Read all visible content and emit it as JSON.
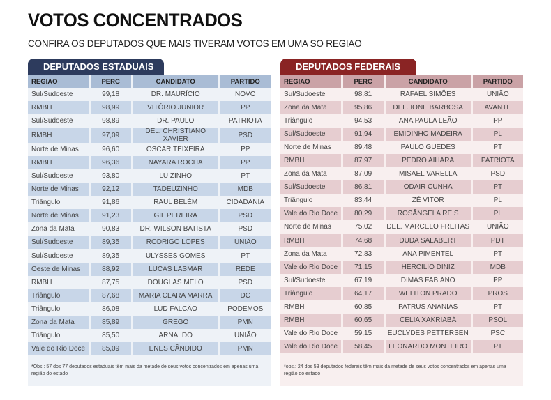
{
  "title": "VOTOS CONCENTRADOS",
  "subtitle": "CONFIRA OS DEPUTADOS QUE MAIS TIVERAM VOTOS EM UMA SO REGIAO",
  "colors": {
    "estaduais_accent": "#2d3b5d",
    "federais_accent": "#8a2424"
  },
  "estaduais": {
    "label": "DEPUTADOS ESTADUAIS",
    "headers": [
      "REGIAO",
      "PERC",
      "CANDIDATO",
      "PARTIDO"
    ],
    "rows": [
      [
        "Sul/Sudoeste",
        "99,18",
        "DR. MAURÍCIO",
        "NOVO"
      ],
      [
        "RMBH",
        "98,99",
        "VITÓRIO JUNIOR",
        "PP"
      ],
      [
        "Sul/Sudoeste",
        "98,89",
        "DR. PAULO",
        "PATRIOTA"
      ],
      [
        "RMBH",
        "97,09",
        "DEL. CHRISTIANO XAVIER",
        "PSD"
      ],
      [
        "Norte de Minas",
        "96,60",
        "OSCAR TEIXEIRA",
        "PP"
      ],
      [
        "RMBH",
        "96,36",
        "NAYARA ROCHA",
        "PP"
      ],
      [
        "Sul/Sudoeste",
        "93,80",
        "LUIZINHO",
        "PT"
      ],
      [
        "Norte de Minas",
        "92,12",
        "TADEUZINHO",
        "MDB"
      ],
      [
        "Triângulo",
        "91,86",
        "RAUL BELÉM",
        "CIDADANIA"
      ],
      [
        "Norte de Minas",
        "91,23",
        "GIL PEREIRA",
        "PSD"
      ],
      [
        "Zona da Mata",
        "90,83",
        "DR. WILSON BATISTA",
        "PSD"
      ],
      [
        "Sul/Sudoeste",
        "89,35",
        "RODRIGO LOPES",
        "UNIÃO"
      ],
      [
        "Sul/Sudoeste",
        "89,35",
        "ULYSSES GOMES",
        "PT"
      ],
      [
        "Oeste de Minas",
        "88,92",
        "LUCAS LASMAR",
        "REDE"
      ],
      [
        "RMBH",
        "87,75",
        "DOUGLAS MELO",
        "PSD"
      ],
      [
        "Triângulo",
        "87,68",
        "MARIA CLARA MARRA",
        "DC"
      ],
      [
        "Triângulo",
        "86,08",
        "LUD FALCÃO",
        "PODEMOS"
      ],
      [
        "Zona da Mata",
        "85,89",
        "GREGO",
        "PMN"
      ],
      [
        "Triângulo",
        "85,50",
        "ARNALDO",
        "UNIÃO"
      ],
      [
        "Vale do Rio Doce",
        "85,09",
        "ENES CÂNDIDO",
        "PMN"
      ]
    ],
    "note": "*Obs.: 57 dos 77 deputados estaduais têm mais da metade de seus votos concentrados em apenas uma região do estado"
  },
  "federais": {
    "label": "DEPUTADOS FEDERAIS",
    "headers": [
      "REGIAO",
      "PERC",
      "CANDIDATO",
      "PARTIDO"
    ],
    "rows": [
      [
        "Sul/Sudoeste",
        "98,81",
        "RAFAEL SIMÕES",
        "UNIÃO"
      ],
      [
        "Zona da Mata",
        "95,86",
        "DEL. IONE BARBOSA",
        "AVANTE"
      ],
      [
        "Triângulo",
        "94,53",
        "ANA PAULA LEÃO",
        "PP"
      ],
      [
        "Sul/Sudoeste",
        "91,94",
        "EMIDINHO MADEIRA",
        "PL"
      ],
      [
        "Norte de Minas",
        "89,48",
        "PAULO GUEDES",
        "PT"
      ],
      [
        "RMBH",
        "87,97",
        "PEDRO AIHARA",
        "PATRIOTA"
      ],
      [
        "Zona da Mata",
        "87,09",
        "MISAEL VARELLA",
        "PSD"
      ],
      [
        "Sul/Sudoeste",
        "86,81",
        "ODAIR CUNHA",
        "PT"
      ],
      [
        "Triângulo",
        "83,44",
        "ZÉ VITOR",
        "PL"
      ],
      [
        "Vale do Rio Doce",
        "80,29",
        "ROSÂNGELA REIS",
        "PL"
      ],
      [
        "Norte de Minas",
        "75,02",
        "DEL. MARCELO FREITAS",
        "UNIÃO"
      ],
      [
        "RMBH",
        "74,68",
        "DUDA SALABERT",
        "PDT"
      ],
      [
        "Zona da Mata",
        "72,83",
        "ANA PIMENTEL",
        "PT"
      ],
      [
        "Vale do Rio Doce",
        "71,15",
        "HERCILIO DINIZ",
        "MDB"
      ],
      [
        "Sul/Sudoeste",
        "67,19",
        "DIMAS FABIANO",
        "PP"
      ],
      [
        "Triângulo",
        "64,17",
        "WELITON PRADO",
        "PROS"
      ],
      [
        "RMBH",
        "60,85",
        "PATRUS ANANIAS",
        "PT"
      ],
      [
        "RMBH",
        "60,65",
        "CÉLIA XAKRIABÁ",
        "PSOL"
      ],
      [
        "Vale do Rio Doce",
        "59,15",
        "EUCLYDES PETTERSEN",
        "PSC"
      ],
      [
        "Vale do Rio Doce",
        "58,45",
        "LEONARDO MONTEIRO",
        "PT"
      ]
    ],
    "note": "*obs.: 24 dos 53 deputados federais têm mais da metade de seus votos concentrados em apenas uma região do estado"
  }
}
